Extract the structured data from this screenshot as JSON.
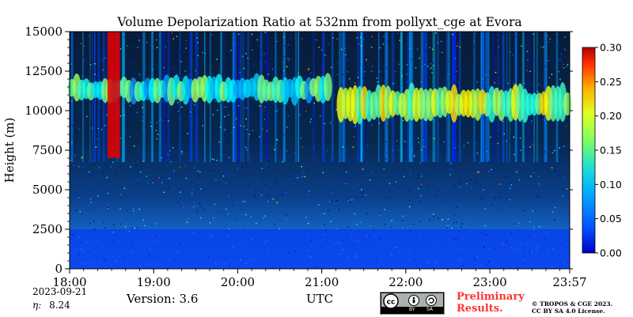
{
  "chart_data": {
    "type": "heatmap",
    "title": "Volume Depolarization Ratio at 532nm from pollyxt_cge at Evora",
    "xlabel": "",
    "ylabel": "Height (m)",
    "x_ticks": [
      "18:00",
      "19:00",
      "20:00",
      "21:00",
      "22:00",
      "23:00",
      "23:57"
    ],
    "x_tick_hours": [
      18.0,
      19.0,
      20.0,
      21.0,
      22.0,
      23.0,
      23.95
    ],
    "xlim_hours": [
      18.0,
      23.95
    ],
    "y_ticks": [
      "0",
      "2500",
      "5000",
      "7500",
      "10000",
      "12500",
      "15000"
    ],
    "y_tick_values": [
      0,
      2500,
      5000,
      7500,
      10000,
      12500,
      15000
    ],
    "ylim": [
      0,
      15000
    ],
    "colorbar": {
      "ticks": [
        "0.00",
        "0.05",
        "0.10",
        "0.15",
        "0.20",
        "0.25",
        "0.30"
      ],
      "tick_values": [
        0.0,
        0.05,
        0.1,
        0.15,
        0.2,
        0.25,
        0.3
      ],
      "range": [
        0.0,
        0.3
      ],
      "colormap": "jet"
    },
    "features": [
      {
        "kind": "cirrus cloud layer",
        "time_start_h": 18.0,
        "time_end_h": 21.1,
        "base_m": 10500,
        "top_m": 12200,
        "depol": 0.12
      },
      {
        "kind": "cirrus cloud layer",
        "time_start_h": 21.2,
        "time_end_h": 23.95,
        "base_m": 9300,
        "top_m": 11600,
        "depol": 0.16
      },
      {
        "kind": "high depolarization column",
        "time_start_h": 18.45,
        "time_end_h": 18.6,
        "base_m": 7000,
        "top_m": 15000,
        "depol": 0.27
      },
      {
        "kind": "boundary layer aerosol",
        "time_start_h": 18.0,
        "time_end_h": 23.95,
        "base_m": 0,
        "top_m": 2500,
        "depol": 0.05
      }
    ]
  },
  "date": "2023-09-21",
  "eta_label": "η:",
  "eta_value": "8.24",
  "version": "Version: 3.6",
  "time_zone": "UTC",
  "preliminary_line1": "Preliminary",
  "preliminary_line2": "Results.",
  "copyright_line1": "© TROPOS & CGE 2023.",
  "copyright_line2": "CC BY SA 4.0 License.",
  "license_badge": {
    "by": "BY",
    "sa": "SA"
  },
  "colors": {
    "accent_red": "#ff3333"
  }
}
